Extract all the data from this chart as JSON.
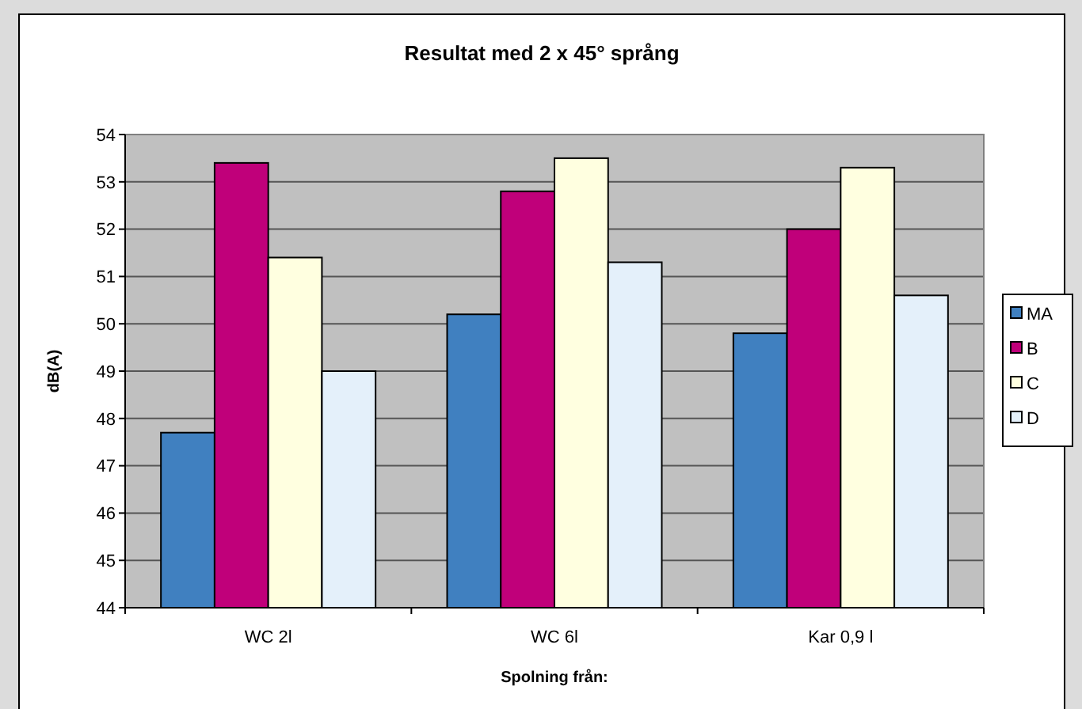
{
  "chart_data": {
    "type": "bar",
    "title": "Resultat med 2 x 45° språng",
    "xlabel": "Spolning från:",
    "ylabel": "dB(A)",
    "categories": [
      "WC 2l",
      "WC 6l",
      "Kar 0,9 l"
    ],
    "series": [
      {
        "name": "MA",
        "color": "#4080c0",
        "values": [
          47.7,
          50.2,
          49.8
        ]
      },
      {
        "name": "B",
        "color": "#c0007a",
        "values": [
          53.4,
          52.8,
          52.0
        ]
      },
      {
        "name": "C",
        "color": "#ffffe0",
        "values": [
          51.4,
          53.5,
          53.3
        ]
      },
      {
        "name": "D",
        "color": "#e4f0fa",
        "values": [
          49.0,
          51.3,
          50.6
        ]
      }
    ],
    "ylim": [
      44,
      54
    ],
    "yticks": [
      44,
      45,
      46,
      47,
      48,
      49,
      50,
      51,
      52,
      53,
      54
    ],
    "grid": "y",
    "legend": "right"
  }
}
